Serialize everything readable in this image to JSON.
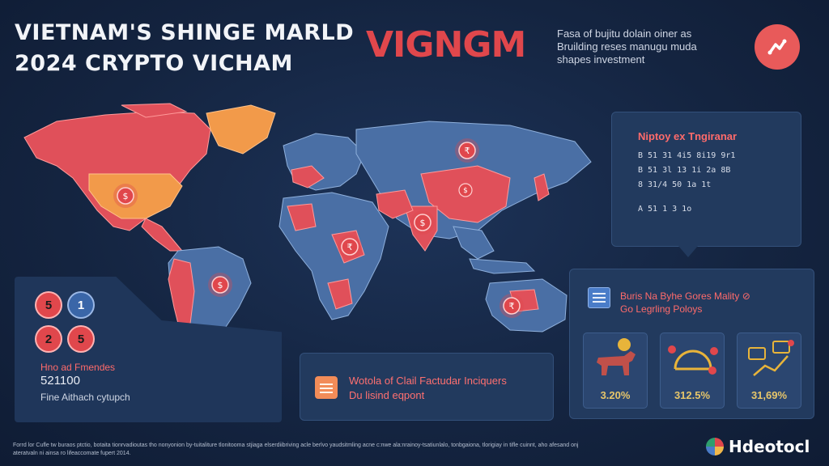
{
  "header": {
    "title_line1": "Vietnam's shinge marld",
    "title_line2": "2024 crypto Vicham",
    "brand": "VIGNGM",
    "tagline": "Fasa of bujitu dolain oiner as Bruilding reses manugu muda shapes investment"
  },
  "top_icon": {
    "name": "chart-icon",
    "color": "#e85a5a"
  },
  "map": {
    "pins": [
      {
        "label": "$"
      },
      {
        "label": "₹"
      },
      {
        "label": "$"
      },
      {
        "label": "₹"
      },
      {
        "label": "$"
      },
      {
        "label": "$"
      },
      {
        "label": "₹"
      }
    ]
  },
  "stats_panel": {
    "title": "Niptoy ex Tngiranar",
    "lines": [
      "B 51 31 4i5 8i19 9r1",
      "B 51 3l 13 1i 2a 8B",
      "8 31/4 50 1a 1t",
      "A 51 1 3 1o"
    ]
  },
  "left_panel": {
    "badges": [
      "5",
      "1",
      "2",
      "5"
    ],
    "label": "Hno ad Fmendes",
    "value": "521100",
    "caption": "Fine Aithach cytupch"
  },
  "mid_panel": {
    "line1": "Wotola of Clail Factudar Inciquers",
    "line2": "Du lisind eqpont"
  },
  "right_panel": {
    "line1": "Buris Na Byhe Gores Mality ⊘",
    "line2": "Go Legrling Poloys",
    "cards": [
      {
        "value": "3.20%",
        "icon": "bull-icon"
      },
      {
        "value": "312.5%",
        "icon": "gauge-icon"
      },
      {
        "value": "31,69%",
        "icon": "growth-chart-icon"
      }
    ]
  },
  "footnote": "Forrd lor Cufle tw buraos ptctio, botaita tionrvadioutas tho nonyonion by-tuitaliture tlonitooma stjiaga elserdiibriving acle berlvo yaudsitmling acne c:nwe ala:nrainoy-tsatiunlalo, tonbgaiona, tlorigiay in tifle cuinnt, aho afesand onj ateratvaln ni ainsa ro lifeaccomate fupert 2014.",
  "logo": "Hdeotocl",
  "colors": {
    "background": "#142440",
    "accent": "#e0474c",
    "land_blue": "#4a6fa5",
    "land_red": "#e0505a",
    "land_orange": "#f29a4a"
  }
}
